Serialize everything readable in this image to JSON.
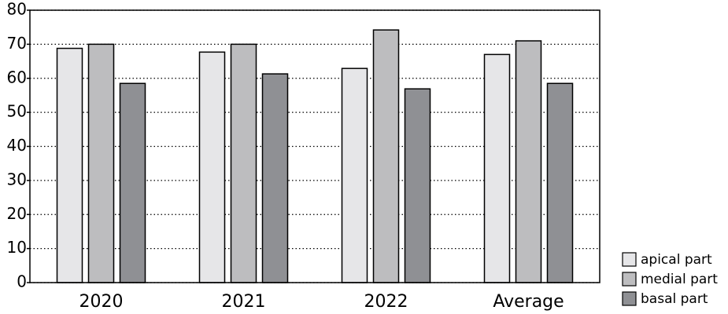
{
  "chart_data": {
    "type": "bar",
    "categories": [
      "2020",
      "2021",
      "2022",
      "Average"
    ],
    "series": [
      {
        "name": "apical part",
        "color": "#e6e6e8",
        "values": [
          68.8,
          67.7,
          62.9,
          67.0
        ]
      },
      {
        "name": "medial part",
        "color": "#bdbdbf",
        "values": [
          70.0,
          70.0,
          74.2,
          71.0
        ]
      },
      {
        "name": "basal part",
        "color": "#8f9094",
        "values": [
          58.5,
          61.3,
          56.9,
          58.5
        ]
      }
    ],
    "ylim": [
      0,
      80
    ],
    "yticks": [
      0,
      10,
      20,
      30,
      40,
      50,
      60,
      70,
      80
    ],
    "grid": true,
    "legend": "bottom-right"
  }
}
